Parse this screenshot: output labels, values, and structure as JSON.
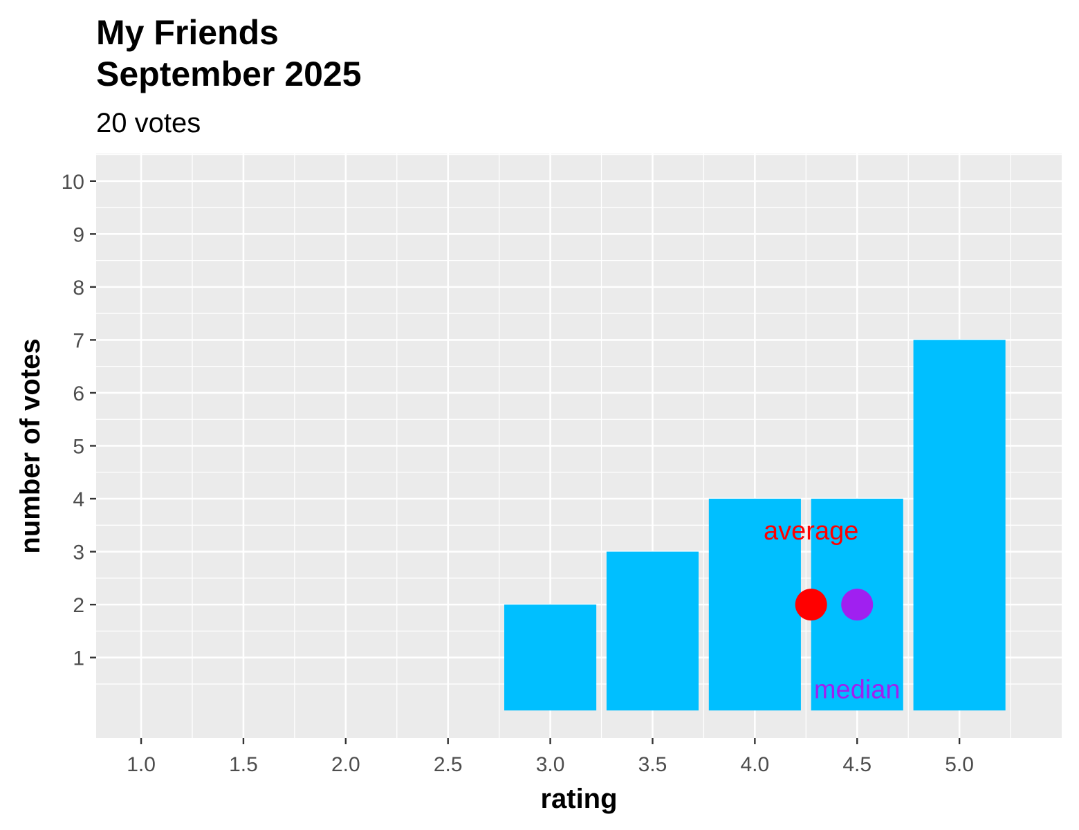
{
  "chart_data": {
    "type": "bar",
    "title_lines": [
      "My Friends",
      "September 2025"
    ],
    "subtitle": "20 votes",
    "xlabel": "rating",
    "ylabel": "number of votes",
    "xlim": [
      0.78,
      5.5
    ],
    "ylim": [
      -0.52,
      10.52
    ],
    "x_ticks": [
      1.0,
      1.5,
      2.0,
      2.5,
      3.0,
      3.5,
      4.0,
      4.5,
      5.0
    ],
    "x_tick_labels": [
      "1.0",
      "1.5",
      "2.0",
      "2.5",
      "3.0",
      "3.5",
      "4.0",
      "4.5",
      "5.0"
    ],
    "y_ticks": [
      1,
      2,
      3,
      4,
      5,
      6,
      7,
      8,
      9,
      10
    ],
    "y_tick_labels": [
      "1",
      "2",
      "3",
      "4",
      "5",
      "6",
      "7",
      "8",
      "9",
      "10"
    ],
    "grid": true,
    "bar_width": 0.45,
    "bars": [
      {
        "x": 3.0,
        "value": 2
      },
      {
        "x": 3.5,
        "value": 3
      },
      {
        "x": 4.0,
        "value": 4
      },
      {
        "x": 4.5,
        "value": 4
      },
      {
        "x": 5.0,
        "value": 7
      }
    ],
    "points": [
      {
        "name": "average",
        "x": 4.275,
        "y": 2,
        "color": "#ff0000"
      },
      {
        "name": "median",
        "x": 4.5,
        "y": 2,
        "color": "#a020f0"
      }
    ],
    "annotations": [
      {
        "text": "average",
        "x": 4.275,
        "y": 3.4,
        "color": "#ff0000"
      },
      {
        "text": "median",
        "x": 4.5,
        "y": 0.4,
        "color": "#a020f0"
      }
    ],
    "colors": {
      "bar": "#00bfff",
      "panel_background": "#ebebeb",
      "grid": "#ffffff",
      "average": "#ff0000",
      "median": "#a020f0"
    }
  }
}
